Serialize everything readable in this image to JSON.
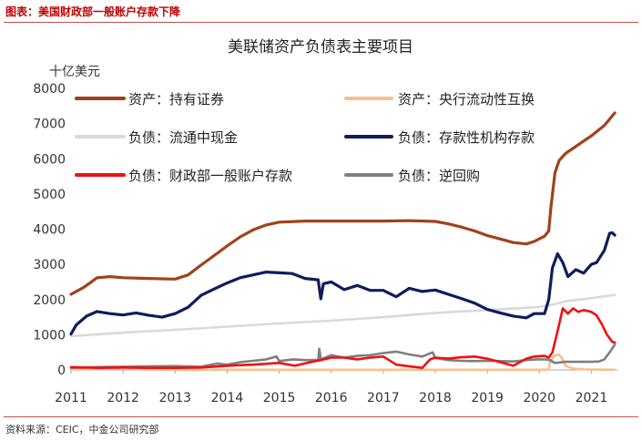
{
  "figure": {
    "label": "图表：美国财政部一般账户存款下降",
    "source": "资料来源：CEIC，中金公司研究部"
  },
  "chart_data": {
    "type": "line",
    "title": "美联储资产负债表主要项目",
    "ylabel": "十亿美元",
    "xlabel": "",
    "xlim": [
      2011.0,
      2021.5
    ],
    "ylim": [
      0,
      8000
    ],
    "yticks": [
      "0",
      "1000",
      "2000",
      "3000",
      "4000",
      "5000",
      "6000",
      "7000",
      "8000"
    ],
    "xticks": [
      "2011",
      "2012",
      "2013",
      "2014",
      "2015",
      "2016",
      "2017",
      "2018",
      "2019",
      "2020",
      "2021"
    ],
    "legend_location": "top",
    "series": [
      {
        "name": "资产：持有证券",
        "color": "#a0421a",
        "points": [
          [
            2011.0,
            2150
          ],
          [
            2011.25,
            2350
          ],
          [
            2011.5,
            2620
          ],
          [
            2011.75,
            2650
          ],
          [
            2012.0,
            2620
          ],
          [
            2012.5,
            2600
          ],
          [
            2013.0,
            2580
          ],
          [
            2013.25,
            2700
          ],
          [
            2013.5,
            2980
          ],
          [
            2013.75,
            3250
          ],
          [
            2014.0,
            3520
          ],
          [
            2014.25,
            3780
          ],
          [
            2014.5,
            3980
          ],
          [
            2014.75,
            4120
          ],
          [
            2015.0,
            4200
          ],
          [
            2015.5,
            4230
          ],
          [
            2016.0,
            4230
          ],
          [
            2016.5,
            4230
          ],
          [
            2017.0,
            4230
          ],
          [
            2017.5,
            4240
          ],
          [
            2018.0,
            4220
          ],
          [
            2018.25,
            4150
          ],
          [
            2018.5,
            4060
          ],
          [
            2018.75,
            3950
          ],
          [
            2019.0,
            3820
          ],
          [
            2019.25,
            3720
          ],
          [
            2019.5,
            3620
          ],
          [
            2019.75,
            3580
          ],
          [
            2019.9,
            3650
          ],
          [
            2020.1,
            3800
          ],
          [
            2020.18,
            3950
          ],
          [
            2020.22,
            4600
          ],
          [
            2020.3,
            5600
          ],
          [
            2020.38,
            5950
          ],
          [
            2020.5,
            6150
          ],
          [
            2020.75,
            6400
          ],
          [
            2021.0,
            6650
          ],
          [
            2021.25,
            6950
          ],
          [
            2021.45,
            7300
          ]
        ]
      },
      {
        "name": "资产：央行流动性互换",
        "color": "#f7c08c",
        "points": [
          [
            2011.0,
            10
          ],
          [
            2011.9,
            40
          ],
          [
            2012.0,
            100
          ],
          [
            2012.1,
            60
          ],
          [
            2012.3,
            20
          ],
          [
            2012.5,
            10
          ],
          [
            2013.0,
            5
          ],
          [
            2020.0,
            5
          ],
          [
            2020.18,
            10
          ],
          [
            2020.2,
            200
          ],
          [
            2020.28,
            400
          ],
          [
            2020.38,
            440
          ],
          [
            2020.45,
            300
          ],
          [
            2020.5,
            120
          ],
          [
            2020.65,
            40
          ],
          [
            2020.85,
            15
          ],
          [
            2021.0,
            10
          ],
          [
            2021.45,
            5
          ]
        ]
      },
      {
        "name": "负债：流通中现金",
        "color": "#d9d9d9",
        "points": [
          [
            2011.0,
            960
          ],
          [
            2012.0,
            1060
          ],
          [
            2013.0,
            1140
          ],
          [
            2014.0,
            1230
          ],
          [
            2015.0,
            1320
          ],
          [
            2016.0,
            1400
          ],
          [
            2017.0,
            1500
          ],
          [
            2018.0,
            1620
          ],
          [
            2019.0,
            1700
          ],
          [
            2020.0,
            1790
          ],
          [
            2020.25,
            1850
          ],
          [
            2020.5,
            1950
          ],
          [
            2021.0,
            2040
          ],
          [
            2021.45,
            2130
          ]
        ]
      },
      {
        "name": "负债：存款性机构存款",
        "color": "#0f1d5c",
        "points": [
          [
            2011.0,
            1020
          ],
          [
            2011.1,
            1280
          ],
          [
            2011.3,
            1530
          ],
          [
            2011.5,
            1660
          ],
          [
            2011.75,
            1600
          ],
          [
            2012.0,
            1560
          ],
          [
            2012.25,
            1620
          ],
          [
            2012.5,
            1550
          ],
          [
            2012.75,
            1500
          ],
          [
            2013.0,
            1600
          ],
          [
            2013.25,
            1780
          ],
          [
            2013.5,
            2120
          ],
          [
            2013.75,
            2300
          ],
          [
            2014.0,
            2470
          ],
          [
            2014.25,
            2620
          ],
          [
            2014.5,
            2700
          ],
          [
            2014.75,
            2780
          ],
          [
            2015.0,
            2760
          ],
          [
            2015.25,
            2740
          ],
          [
            2015.5,
            2600
          ],
          [
            2015.75,
            2560
          ],
          [
            2015.8,
            2020
          ],
          [
            2015.85,
            2450
          ],
          [
            2016.0,
            2500
          ],
          [
            2016.25,
            2280
          ],
          [
            2016.5,
            2400
          ],
          [
            2016.75,
            2260
          ],
          [
            2017.0,
            2260
          ],
          [
            2017.25,
            2080
          ],
          [
            2017.5,
            2320
          ],
          [
            2017.75,
            2230
          ],
          [
            2018.0,
            2270
          ],
          [
            2018.25,
            2150
          ],
          [
            2018.5,
            2030
          ],
          [
            2018.75,
            1900
          ],
          [
            2019.0,
            1720
          ],
          [
            2019.25,
            1620
          ],
          [
            2019.5,
            1530
          ],
          [
            2019.75,
            1480
          ],
          [
            2019.9,
            1600
          ],
          [
            2020.1,
            1600
          ],
          [
            2020.18,
            2000
          ],
          [
            2020.25,
            2900
          ],
          [
            2020.35,
            3300
          ],
          [
            2020.45,
            3050
          ],
          [
            2020.55,
            2650
          ],
          [
            2020.7,
            2850
          ],
          [
            2020.85,
            2750
          ],
          [
            2021.0,
            3000
          ],
          [
            2021.1,
            3050
          ],
          [
            2021.25,
            3400
          ],
          [
            2021.35,
            3880
          ],
          [
            2021.4,
            3900
          ],
          [
            2021.45,
            3830
          ]
        ]
      },
      {
        "name": "负债：财政部一般账户存款",
        "color": "#ee1111",
        "points": [
          [
            2011.0,
            80
          ],
          [
            2011.5,
            60
          ],
          [
            2012.0,
            70
          ],
          [
            2012.5,
            60
          ],
          [
            2013.0,
            60
          ],
          [
            2013.5,
            70
          ],
          [
            2014.0,
            120
          ],
          [
            2014.5,
            150
          ],
          [
            2015.0,
            200
          ],
          [
            2015.3,
            120
          ],
          [
            2015.6,
            220
          ],
          [
            2015.8,
            280
          ],
          [
            2016.0,
            350
          ],
          [
            2016.25,
            350
          ],
          [
            2016.5,
            300
          ],
          [
            2016.75,
            350
          ],
          [
            2017.0,
            380
          ],
          [
            2017.25,
            150
          ],
          [
            2017.5,
            100
          ],
          [
            2017.75,
            60
          ],
          [
            2017.9,
            300
          ],
          [
            2018.0,
            350
          ],
          [
            2018.25,
            320
          ],
          [
            2018.5,
            360
          ],
          [
            2018.75,
            380
          ],
          [
            2019.0,
            320
          ],
          [
            2019.25,
            220
          ],
          [
            2019.5,
            120
          ],
          [
            2019.75,
            320
          ],
          [
            2019.9,
            380
          ],
          [
            2020.1,
            400
          ],
          [
            2020.18,
            350
          ],
          [
            2020.25,
            500
          ],
          [
            2020.35,
            1100
          ],
          [
            2020.45,
            1750
          ],
          [
            2020.55,
            1600
          ],
          [
            2020.65,
            1750
          ],
          [
            2020.75,
            1650
          ],
          [
            2020.85,
            1700
          ],
          [
            2021.0,
            1650
          ],
          [
            2021.1,
            1550
          ],
          [
            2021.2,
            1300
          ],
          [
            2021.3,
            1000
          ],
          [
            2021.4,
            800
          ],
          [
            2021.45,
            780
          ]
        ]
      },
      {
        "name": "负债：逆回购",
        "color": "#7f7f7f",
        "points": [
          [
            2011.0,
            60
          ],
          [
            2011.5,
            80
          ],
          [
            2012.0,
            90
          ],
          [
            2012.5,
            100
          ],
          [
            2013.0,
            110
          ],
          [
            2013.5,
            90
          ],
          [
            2013.8,
            180
          ],
          [
            2014.0,
            150
          ],
          [
            2014.25,
            220
          ],
          [
            2014.5,
            260
          ],
          [
            2014.75,
            300
          ],
          [
            2014.95,
            380
          ],
          [
            2015.0,
            250
          ],
          [
            2015.25,
            300
          ],
          [
            2015.5,
            280
          ],
          [
            2015.75,
            280
          ],
          [
            2015.77,
            600
          ],
          [
            2015.8,
            300
          ],
          [
            2016.0,
            420
          ],
          [
            2016.25,
            350
          ],
          [
            2016.5,
            400
          ],
          [
            2016.75,
            420
          ],
          [
            2017.0,
            480
          ],
          [
            2017.25,
            520
          ],
          [
            2017.5,
            440
          ],
          [
            2017.75,
            380
          ],
          [
            2017.95,
            500
          ],
          [
            2018.0,
            340
          ],
          [
            2018.25,
            280
          ],
          [
            2018.5,
            260
          ],
          [
            2018.75,
            250
          ],
          [
            2019.0,
            260
          ],
          [
            2019.25,
            250
          ],
          [
            2019.5,
            240
          ],
          [
            2019.75,
            280
          ],
          [
            2019.95,
            300
          ],
          [
            2020.1,
            300
          ],
          [
            2020.2,
            280
          ],
          [
            2020.3,
            200
          ],
          [
            2020.5,
            230
          ],
          [
            2020.75,
            230
          ],
          [
            2021.0,
            230
          ],
          [
            2021.15,
            240
          ],
          [
            2021.25,
            300
          ],
          [
            2021.35,
            500
          ],
          [
            2021.42,
            650
          ],
          [
            2021.45,
            720
          ]
        ]
      }
    ]
  }
}
